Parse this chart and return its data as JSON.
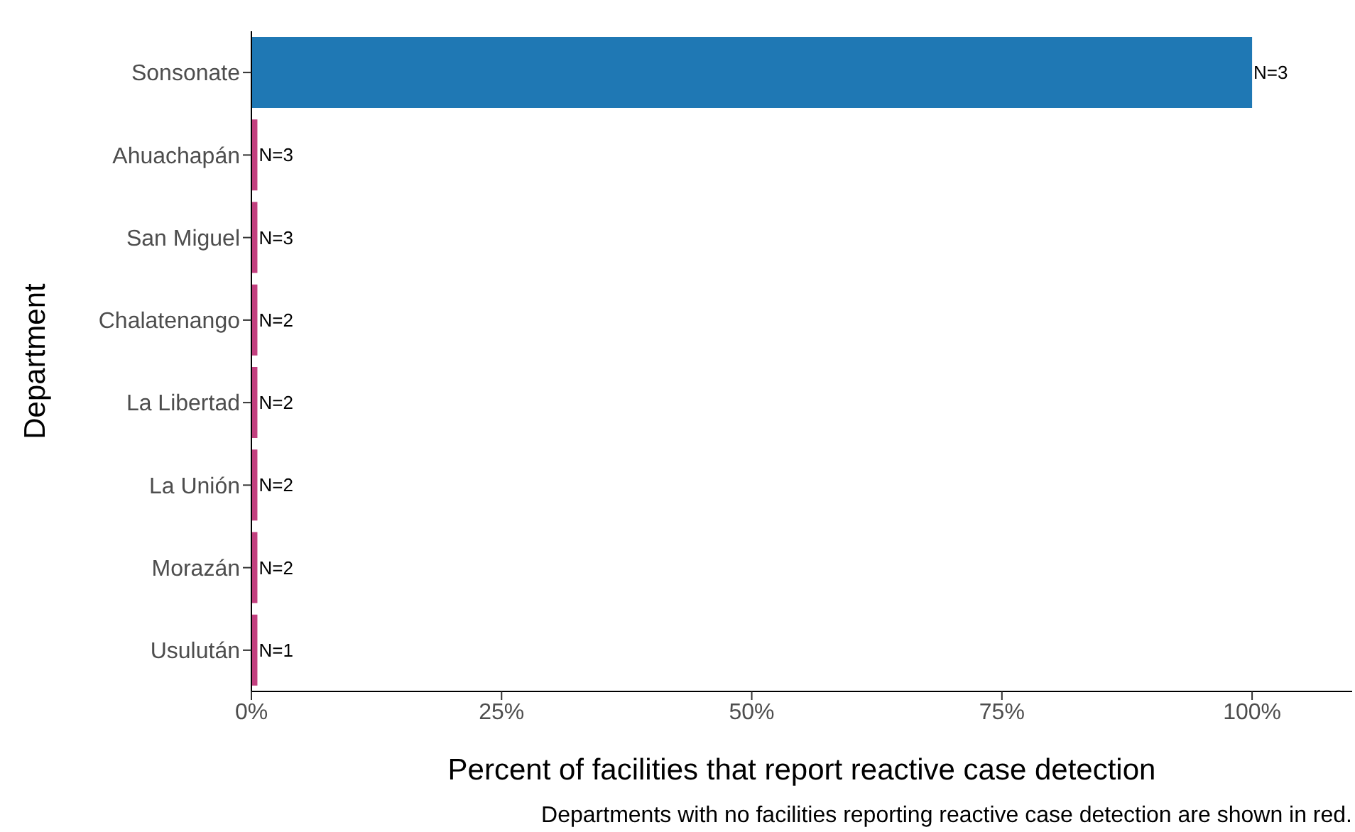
{
  "chart_data": {
    "type": "bar",
    "orientation": "horizontal",
    "xlabel": "Percent of facilities that report reactive case detection",
    "ylabel": "Department",
    "categories": [
      "Sonsonate",
      "Ahuachapán",
      "San Miguel",
      "Chalatenango",
      "La Libertad",
      "La Unión",
      "Morazán",
      "Usulután"
    ],
    "values": [
      100,
      0.6,
      0.6,
      0.6,
      0.6,
      0.6,
      0.6,
      0.6
    ],
    "colors": [
      "#1f78b4",
      "#c2407f",
      "#c2407f",
      "#c2407f",
      "#c2407f",
      "#c2407f",
      "#c2407f",
      "#c2407f"
    ],
    "xlim": [
      0,
      110
    ],
    "xticks": [
      {
        "value": 0,
        "label": "0%"
      },
      {
        "value": 25,
        "label": "25%"
      },
      {
        "value": 50,
        "label": "50%"
      },
      {
        "value": 75,
        "label": "75%"
      },
      {
        "value": 100,
        "label": "100%"
      }
    ],
    "grid": false,
    "legend": false,
    "annotations": [
      "N=3",
      "N=3",
      "N=3",
      "N=2",
      "N=2",
      "N=2",
      "N=2",
      "N=1",
      "Departments with no facilities reporting reactive case detection are shown in red."
    ]
  }
}
